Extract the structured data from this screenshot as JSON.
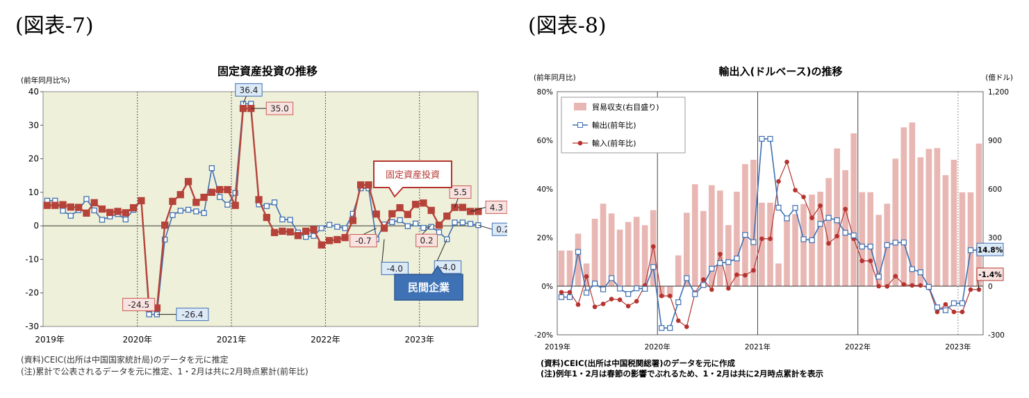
{
  "figure7": {
    "fig_label": "(図表-7)",
    "notes": [
      "(資料)CEIC(出所は中国国家統計局)のデータを元に推定",
      "(注)累計で公表されるデータを元に推定、1・2月は共に2月時点累計(前年比)"
    ]
  },
  "figure8": {
    "fig_label": "(図表-8)",
    "notes": [
      "(資料)CEIC(出所は中国税関総署)のデータを元に作成",
      "(注)例年1・2月は春節の影響でぶれるため、1・2月は共に2月時点累計を表示"
    ]
  },
  "chart_data": [
    {
      "type": "line",
      "title": "固定資産投資の推移",
      "ylabel": "(前年同月比%)",
      "ylim": [
        -30,
        40
      ],
      "yticks": [
        "-30",
        "-20",
        "-10",
        "0",
        "10",
        "20",
        "30",
        "40"
      ],
      "year_labels": [
        "2019年",
        "2020年",
        "2021年",
        "2022年",
        "2023年"
      ],
      "x_start": "2019-01",
      "colors": {
        "plot_bg": "#eff0d9",
        "series1": "#b5433a",
        "series2": "#3d6fb0"
      },
      "series": [
        {
          "name": "固定資産投資",
          "marker": "square-filled",
          "values": [
            6.1,
            6.1,
            6.3,
            5.6,
            5.5,
            3.8,
            6.9,
            5.0,
            4.0,
            4.3,
            3.9,
            5.4,
            7.5,
            -24.5,
            -24.5,
            0.2,
            7.3,
            9.3,
            13.2,
            7.0,
            8.5,
            10.0,
            10.8,
            10.8,
            6.1,
            35.0,
            35.0,
            7.8,
            2.5,
            -2.0,
            -1.6,
            -1.8,
            -2.9,
            -1.6,
            -1.1,
            -5.7,
            -4.4,
            -4.1,
            -3.5,
            1.6,
            12.2,
            12.2,
            3.5,
            -0.7,
            3.6,
            5.4,
            3.4,
            6.4,
            6.8,
            4.6,
            0.2,
            2.9,
            5.5,
            5.5,
            4.3,
            4.3
          ]
        },
        {
          "name": "民間企業",
          "marker": "square-open",
          "values": [
            7.5,
            7.5,
            4.5,
            3.0,
            4.7,
            8.0,
            4.6,
            1.8,
            2.8,
            3.5,
            1.9,
            4.8,
            7.5,
            -26.4,
            -26.4,
            -4.1,
            3.2,
            4.5,
            4.8,
            4.3,
            3.8,
            17.2,
            8.6,
            6.3,
            9.8,
            36.4,
            36.4,
            6.4,
            5.9,
            7.0,
            1.9,
            1.8,
            -2.0,
            -3.3,
            -3.0,
            -0.7,
            0.3,
            -0.3,
            -0.7,
            3.6,
            11.2,
            11.2,
            -4.0,
            0.4,
            1.1,
            1.7,
            -0.1,
            0.7,
            -0.6,
            -0.3,
            -1.9,
            -4.0,
            1.0,
            1.0,
            0.6,
            0.2
          ]
        }
      ],
      "annotations": [
        {
          "label": "36.4",
          "style": "blue"
        },
        {
          "label": "35.0",
          "style": "red"
        },
        {
          "label": "-24.5",
          "style": "red"
        },
        {
          "label": "-26.4",
          "style": "blue"
        },
        {
          "label": "-0.7",
          "style": "red"
        },
        {
          "label": "-4.0",
          "style": "blue"
        },
        {
          "label": "0.2",
          "style": "red"
        },
        {
          "label": "-4.0",
          "style": "blue"
        },
        {
          "label": "5.5",
          "style": "red"
        },
        {
          "label": "4.3",
          "style": "red"
        },
        {
          "label": "0.2",
          "style": "blue"
        }
      ],
      "callouts": [
        {
          "label": "固定資産投資",
          "style": "red"
        },
        {
          "label": "民間企業",
          "style": "blue"
        }
      ]
    },
    {
      "type": "bar+line",
      "title": "輸出入(ドルベース)の推移",
      "ylabel_left": "(前年同月比)",
      "ylabel_right": "(億ドル)",
      "ylim_left": [
        -20,
        80
      ],
      "ylim_right": [
        -300,
        1200
      ],
      "yticks_left": [
        "-20%",
        "0%",
        "20%",
        "40%",
        "60%",
        "80%"
      ],
      "yticks_right": [
        "-300",
        "0",
        "300",
        "600",
        "900",
        "1,200"
      ],
      "year_labels": [
        "2019年",
        "2020年",
        "2021年",
        "2022年",
        "2023年"
      ],
      "x_start": "2019-01",
      "colors": {
        "bar": "#e9b7b3",
        "export": "#3d6fb0",
        "import": "#b5332e"
      },
      "legend_position": "top-left",
      "series": [
        {
          "name": "貿易収支(右目盛り)",
          "type": "bar",
          "axis": "right",
          "values": [
            220,
            220,
            324,
            140,
            416,
            509,
            449,
            349,
            396,
            428,
            376,
            469,
            -70,
            -70,
            190,
            453,
            629,
            464,
            623,
            590,
            377,
            583,
            753,
            780,
            515,
            515,
            140,
            423,
            445,
            507,
            565,
            583,
            667,
            850,
            716,
            943,
            580,
            580,
            440,
            509,
            787,
            980,
            1010,
            795,
            847,
            852,
            685,
            780,
            579,
            579,
            880
          ]
        },
        {
          "name": "輸出(前年比)",
          "type": "line",
          "axis": "left",
          "marker": "square-open",
          "values": [
            -4.5,
            -4.5,
            14.1,
            -2.7,
            1.1,
            -1.3,
            3.3,
            -1.0,
            -3.2,
            -0.9,
            -1.1,
            7.9,
            -17.2,
            -17.2,
            -6.6,
            3.3,
            -3.3,
            0.5,
            7.2,
            9.5,
            9.9,
            11.4,
            21.1,
            18.1,
            60.6,
            60.6,
            32.3,
            27.9,
            32.2,
            19.3,
            18.9,
            25.6,
            28.1,
            27.1,
            22.0,
            20.9,
            16.3,
            16.3,
            3.9,
            16.9,
            17.9,
            18.0,
            7.0,
            5.7,
            -0.3,
            -8.7,
            -9.9,
            -7.0,
            -7.0,
            14.8,
            14.8
          ]
        },
        {
          "name": "輸入(前年比)",
          "type": "line",
          "axis": "left",
          "marker": "circle",
          "values": [
            -2.5,
            -2.5,
            -7.6,
            4.0,
            -8.5,
            -7.3,
            -5.3,
            -5.6,
            -8.2,
            -6.2,
            0.3,
            16.3,
            -4.0,
            -4.0,
            -14.2,
            -16.7,
            -2.7,
            2.7,
            -1.4,
            13.2,
            -0.9,
            4.7,
            4.5,
            6.5,
            19.5,
            19.5,
            43.1,
            51.1,
            39.5,
            36.7,
            28.1,
            33.1,
            17.6,
            20.6,
            31.7,
            19.5,
            10.4,
            10.4,
            0.0,
            -0.1,
            4.1,
            0.7,
            0.3,
            0.3,
            -0.7,
            -10.6,
            -7.5,
            -10.6,
            -10.6,
            -1.4,
            -1.4
          ]
        }
      ],
      "annotations": [
        {
          "label": "14.8%",
          "style": "blue"
        },
        {
          "label": "-1.4%",
          "style": "red"
        }
      ]
    }
  ]
}
